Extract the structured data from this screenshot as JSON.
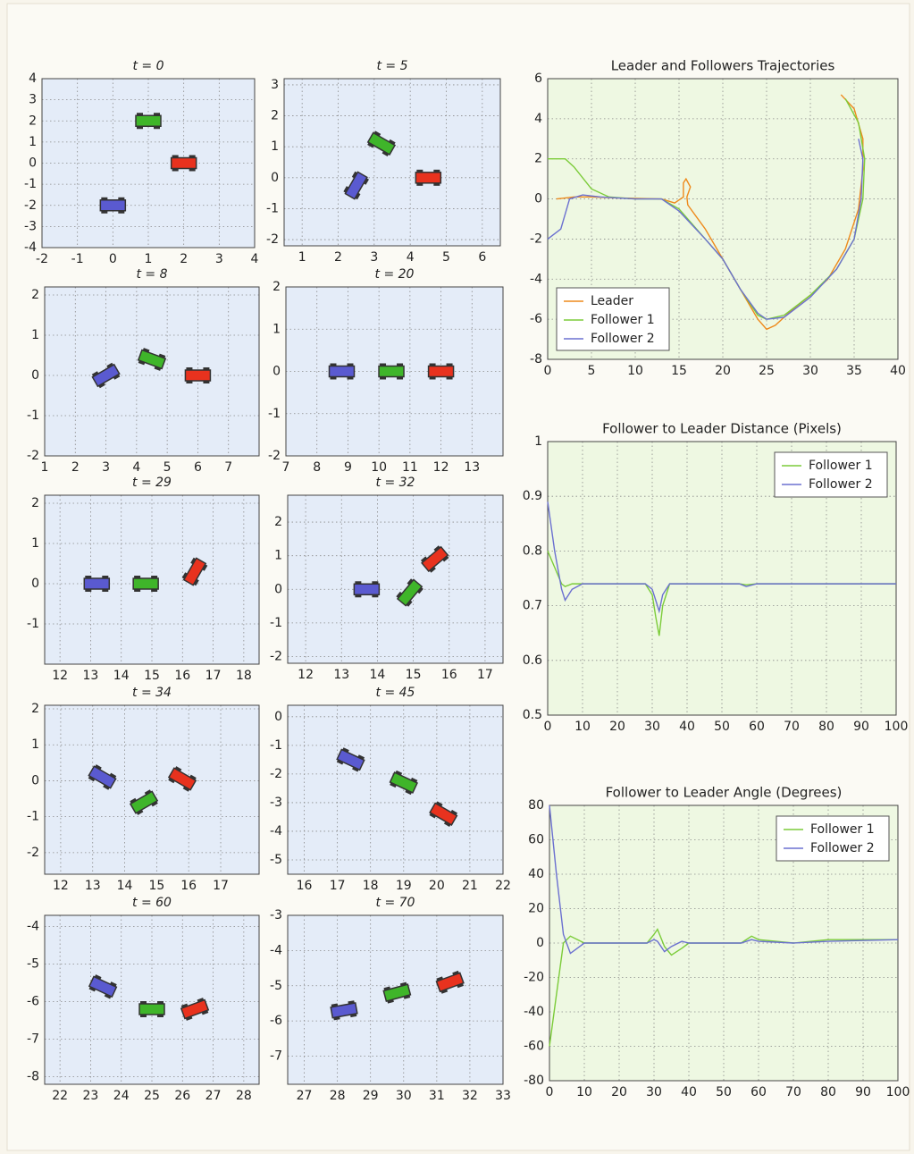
{
  "chart_data": [
    {
      "type": "scatter",
      "title": "t = 0",
      "xlim": [
        -2,
        4
      ],
      "ylim": [
        -4,
        4
      ],
      "xticks": [
        -2,
        -1,
        0,
        1,
        2,
        3,
        4
      ],
      "yticks": [
        -4,
        -3,
        -2,
        -1,
        0,
        1,
        2,
        3,
        4
      ],
      "grid": true,
      "series": [
        {
          "color": "#e8321e",
          "x": [
            2
          ],
          "values": [
            0
          ],
          "angles": [
            0
          ]
        },
        {
          "color": "#3fb52a",
          "x": [
            1
          ],
          "values": [
            2
          ],
          "angles": [
            0
          ]
        },
        {
          "color": "#5a5ad0",
          "x": [
            0
          ],
          "values": [
            -2
          ],
          "angles": [
            0
          ]
        }
      ]
    },
    {
      "type": "scatter",
      "title": "t = 5",
      "xlim": [
        0.5,
        6.5
      ],
      "ylim": [
        -2.2,
        3.2
      ],
      "xticks": [
        1,
        2,
        3,
        4,
        5,
        6
      ],
      "yticks": [
        -2,
        -1,
        0,
        1,
        2,
        3
      ],
      "grid": true,
      "series": [
        {
          "color": "#e8321e",
          "x": [
            4.5
          ],
          "values": [
            0
          ],
          "angles": [
            0
          ]
        },
        {
          "color": "#3fb52a",
          "x": [
            3.2
          ],
          "values": [
            1.1
          ],
          "angles": [
            -30
          ]
        },
        {
          "color": "#5a5ad0",
          "x": [
            2.5
          ],
          "values": [
            -0.25
          ],
          "angles": [
            60
          ]
        }
      ]
    },
    {
      "type": "scatter",
      "title": "t = 8",
      "xlim": [
        1,
        8
      ],
      "ylim": [
        -2,
        2.2
      ],
      "xticks": [
        1,
        2,
        3,
        4,
        5,
        6,
        7
      ],
      "yticks": [
        -2,
        -1,
        0,
        1,
        2
      ],
      "grid": true,
      "series": [
        {
          "color": "#e8321e",
          "x": [
            6
          ],
          "values": [
            0
          ],
          "angles": [
            0
          ]
        },
        {
          "color": "#3fb52a",
          "x": [
            4.5
          ],
          "values": [
            0.4
          ],
          "angles": [
            -20
          ]
        },
        {
          "color": "#5a5ad0",
          "x": [
            3
          ],
          "values": [
            0
          ],
          "angles": [
            30
          ]
        }
      ]
    },
    {
      "type": "scatter",
      "title": "t = 20",
      "xlim": [
        7,
        14
      ],
      "ylim": [
        -2,
        2
      ],
      "xticks": [
        7,
        8,
        9,
        10,
        11,
        12,
        13
      ],
      "yticks": [
        -2,
        -1,
        0,
        1,
        2
      ],
      "grid": true,
      "series": [
        {
          "color": "#e8321e",
          "x": [
            12
          ],
          "values": [
            0
          ],
          "angles": [
            0
          ]
        },
        {
          "color": "#3fb52a",
          "x": [
            10.4
          ],
          "values": [
            0
          ],
          "angles": [
            0
          ]
        },
        {
          "color": "#5a5ad0",
          "x": [
            8.8
          ],
          "values": [
            0
          ],
          "angles": [
            0
          ]
        }
      ]
    },
    {
      "type": "scatter",
      "title": "t = 29",
      "xlim": [
        11.5,
        18.5
      ],
      "ylim": [
        -2,
        2.2
      ],
      "xticks": [
        12,
        13,
        14,
        15,
        16,
        17,
        18
      ],
      "yticks": [
        -1,
        0,
        1,
        2
      ],
      "grid": true,
      "series": [
        {
          "color": "#e8321e",
          "x": [
            16.4
          ],
          "values": [
            0.3
          ],
          "angles": [
            60
          ]
        },
        {
          "color": "#3fb52a",
          "x": [
            14.8
          ],
          "values": [
            0
          ],
          "angles": [
            0
          ]
        },
        {
          "color": "#5a5ad0",
          "x": [
            13.2
          ],
          "values": [
            0
          ],
          "angles": [
            0
          ]
        }
      ]
    },
    {
      "type": "scatter",
      "title": "t = 32",
      "xlim": [
        11.5,
        17.5
      ],
      "ylim": [
        -2.2,
        2.8
      ],
      "xticks": [
        12,
        13,
        14,
        15,
        16,
        17
      ],
      "yticks": [
        -2,
        -1,
        0,
        1,
        2
      ],
      "grid": true,
      "series": [
        {
          "color": "#e8321e",
          "x": [
            15.6
          ],
          "values": [
            0.9
          ],
          "angles": [
            40
          ]
        },
        {
          "color": "#3fb52a",
          "x": [
            14.9
          ],
          "values": [
            -0.1
          ],
          "angles": [
            50
          ]
        },
        {
          "color": "#5a5ad0",
          "x": [
            13.7
          ],
          "values": [
            0
          ],
          "angles": [
            0
          ]
        }
      ]
    },
    {
      "type": "scatter",
      "title": "t = 34",
      "xlim": [
        11.5,
        18.2
      ],
      "ylim": [
        -2.6,
        2.1
      ],
      "xticks": [
        12,
        13,
        14,
        15,
        16,
        17
      ],
      "yticks": [
        -2,
        -1,
        0,
        1,
        2
      ],
      "grid": true,
      "series": [
        {
          "color": "#e8321e",
          "x": [
            15.8
          ],
          "values": [
            0.05
          ],
          "angles": [
            -30
          ]
        },
        {
          "color": "#3fb52a",
          "x": [
            14.6
          ],
          "values": [
            -0.6
          ],
          "angles": [
            30
          ]
        },
        {
          "color": "#5a5ad0",
          "x": [
            13.3
          ],
          "values": [
            0.1
          ],
          "angles": [
            -30
          ]
        }
      ]
    },
    {
      "type": "scatter",
      "title": "t = 45",
      "xlim": [
        15.5,
        22
      ],
      "ylim": [
        -5.5,
        0.4
      ],
      "xticks": [
        16,
        17,
        18,
        19,
        20,
        21,
        22
      ],
      "yticks": [
        -5,
        -4,
        -3,
        -2,
        -1,
        0
      ],
      "grid": true,
      "series": [
        {
          "color": "#e8321e",
          "x": [
            20.2
          ],
          "values": [
            -3.4
          ],
          "angles": [
            -30
          ]
        },
        {
          "color": "#3fb52a",
          "x": [
            19
          ],
          "values": [
            -2.3
          ],
          "angles": [
            -25
          ]
        },
        {
          "color": "#5a5ad0",
          "x": [
            17.4
          ],
          "values": [
            -1.5
          ],
          "angles": [
            -25
          ]
        }
      ]
    },
    {
      "type": "scatter",
      "title": "t = 60",
      "xlim": [
        21.5,
        28.5
      ],
      "ylim": [
        -8.2,
        -3.7
      ],
      "xticks": [
        22,
        23,
        24,
        25,
        26,
        27,
        28
      ],
      "yticks": [
        -8,
        -7,
        -6,
        -5,
        -4
      ],
      "grid": true,
      "series": [
        {
          "color": "#e8321e",
          "x": [
            26.4
          ],
          "values": [
            -6.2
          ],
          "angles": [
            20
          ]
        },
        {
          "color": "#3fb52a",
          "x": [
            25
          ],
          "values": [
            -6.2
          ],
          "angles": [
            0
          ]
        },
        {
          "color": "#5a5ad0",
          "x": [
            23.4
          ],
          "values": [
            -5.6
          ],
          "angles": [
            -25
          ]
        }
      ]
    },
    {
      "type": "scatter",
      "title": "t = 70",
      "xlim": [
        26.5,
        33
      ],
      "ylim": [
        -7.8,
        -3
      ],
      "xticks": [
        27,
        28,
        29,
        30,
        31,
        32,
        33
      ],
      "yticks": [
        -7,
        -6,
        -5,
        -4,
        -3
      ],
      "grid": true,
      "series": [
        {
          "color": "#e8321e",
          "x": [
            31.4
          ],
          "values": [
            -4.9
          ],
          "angles": [
            20
          ]
        },
        {
          "color": "#3fb52a",
          "x": [
            29.8
          ],
          "values": [
            -5.2
          ],
          "angles": [
            15
          ]
        },
        {
          "color": "#5a5ad0",
          "x": [
            28.2
          ],
          "values": [
            -5.7
          ],
          "angles": [
            10
          ]
        }
      ]
    },
    {
      "type": "line",
      "title": "Leader and Followers Trajectories",
      "xlim": [
        0,
        40
      ],
      "ylim": [
        -8,
        6
      ],
      "xticks": [
        0,
        5,
        10,
        15,
        20,
        25,
        30,
        35,
        40
      ],
      "yticks": [
        -8,
        -6,
        -4,
        -2,
        0,
        2,
        4,
        6
      ],
      "grid": true,
      "legend": "lower left",
      "series": [
        {
          "name": "Leader",
          "color": "#ee8a1c",
          "x": [
            1,
            3,
            5,
            8,
            13,
            14.5,
            15.5,
            15.5,
            15.8,
            16.3,
            15.9,
            16,
            18,
            20,
            22,
            24,
            25,
            26,
            28,
            30,
            32,
            34,
            35.5,
            36,
            36,
            35,
            33.5
          ],
          "values": [
            0,
            0.1,
            0.1,
            0.05,
            0,
            -0.2,
            0.1,
            0.8,
            1,
            0.6,
            0.1,
            -0.3,
            -1.5,
            -3,
            -4.5,
            -6,
            -6.5,
            -6.3,
            -5.5,
            -4.8,
            -4,
            -2.5,
            -0.5,
            1.5,
            3,
            4.5,
            5.2
          ]
        },
        {
          "name": "Follower 1",
          "color": "#7ccc3a",
          "x": [
            0,
            2,
            3,
            5,
            7,
            10,
            13,
            15,
            18,
            20,
            22,
            24,
            25,
            27,
            30,
            33,
            35,
            36,
            36.2,
            35.5,
            34
          ],
          "values": [
            2,
            2,
            1.6,
            0.5,
            0.1,
            0,
            0,
            -0.5,
            -2,
            -3,
            -4.5,
            -5.8,
            -6,
            -5.8,
            -4.8,
            -3.5,
            -2,
            0,
            2,
            3.8,
            5
          ]
        },
        {
          "name": "Follower 2",
          "color": "#6b70d0",
          "x": [
            0,
            1.5,
            2.5,
            4,
            6,
            10,
            13,
            15,
            18,
            20,
            22,
            24,
            25,
            27,
            30,
            33,
            35,
            35.8,
            36,
            35.5
          ],
          "values": [
            -2,
            -1.5,
            0,
            0.2,
            0.1,
            0,
            0,
            -0.6,
            -2,
            -3,
            -4.5,
            -5.7,
            -6,
            -5.9,
            -4.9,
            -3.5,
            -2,
            0,
            2,
            3
          ]
        }
      ]
    },
    {
      "type": "line",
      "title": "Follower to Leader Distance (Pixels)",
      "xlim": [
        0,
        100
      ],
      "ylim": [
        0.5,
        1
      ],
      "xticks": [
        0,
        10,
        20,
        30,
        40,
        50,
        60,
        70,
        80,
        90,
        100
      ],
      "yticks": [
        0.5,
        0.6,
        0.7,
        0.8,
        0.9,
        1
      ],
      "grid": true,
      "legend": "upper right",
      "series": [
        {
          "name": "Follower 1",
          "color": "#7ccc3a",
          "x": [
            0,
            2,
            4,
            5,
            7,
            10,
            20,
            28,
            30,
            31,
            32,
            33,
            35,
            40,
            55,
            57,
            60,
            100
          ],
          "values": [
            0.8,
            0.77,
            0.74,
            0.735,
            0.74,
            0.74,
            0.74,
            0.74,
            0.72,
            0.68,
            0.645,
            0.7,
            0.74,
            0.74,
            0.74,
            0.738,
            0.74,
            0.74
          ]
        },
        {
          "name": "Follower 2",
          "color": "#6b70d0",
          "x": [
            0,
            2,
            4,
            5,
            7,
            10,
            20,
            28,
            30,
            31,
            32,
            33,
            35,
            40,
            55,
            57,
            60,
            100
          ],
          "values": [
            0.89,
            0.8,
            0.73,
            0.71,
            0.73,
            0.74,
            0.74,
            0.74,
            0.73,
            0.71,
            0.69,
            0.72,
            0.74,
            0.74,
            0.74,
            0.735,
            0.74,
            0.74
          ]
        }
      ]
    },
    {
      "type": "line",
      "title": "Follower to Leader Angle (Degrees)",
      "xlim": [
        0,
        100
      ],
      "ylim": [
        -80,
        80
      ],
      "xticks": [
        0,
        10,
        20,
        30,
        40,
        50,
        60,
        70,
        80,
        90,
        100
      ],
      "yticks": [
        -80,
        -60,
        -40,
        -20,
        0,
        20,
        40,
        60,
        80
      ],
      "grid": true,
      "legend": "upper right",
      "series": [
        {
          "name": "Follower 1",
          "color": "#7ccc3a",
          "x": [
            0,
            2,
            4,
            6,
            8,
            10,
            20,
            28,
            30,
            31,
            33,
            35,
            38,
            40,
            55,
            58,
            60,
            70,
            80,
            100
          ],
          "values": [
            -60,
            -30,
            0,
            4,
            2,
            0,
            0,
            0,
            5,
            8,
            -2,
            -7,
            -3,
            0,
            0,
            4,
            2,
            0,
            2,
            2
          ]
        },
        {
          "name": "Follower 2",
          "color": "#6b70d0",
          "x": [
            0,
            2,
            4,
            6,
            8,
            10,
            20,
            28,
            30,
            31,
            33,
            35,
            38,
            40,
            55,
            58,
            60,
            70,
            80,
            100
          ],
          "values": [
            80,
            40,
            5,
            -6,
            -3,
            0,
            0,
            0,
            2,
            1,
            -5,
            -2,
            1,
            0,
            0,
            2,
            1,
            0,
            1,
            2
          ]
        }
      ]
    }
  ]
}
